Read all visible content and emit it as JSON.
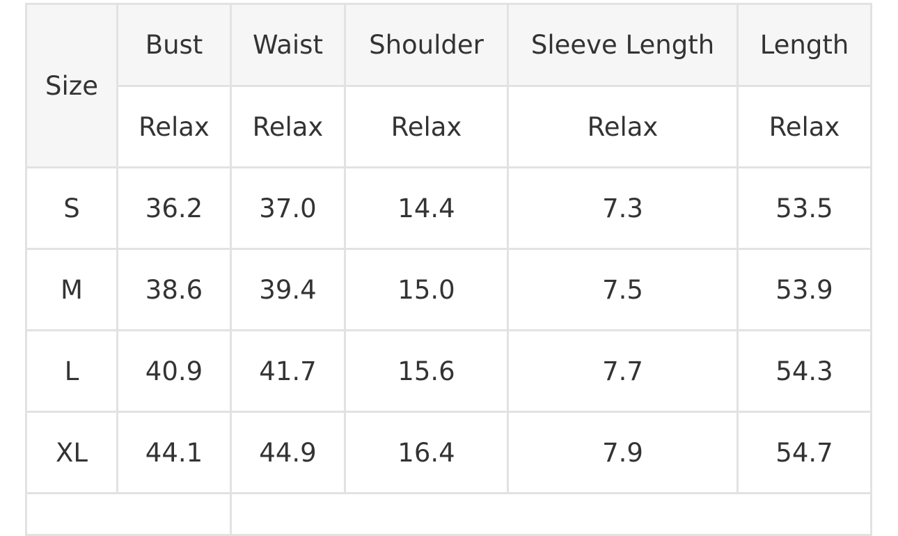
{
  "table": {
    "header": {
      "size": "Size",
      "columns": [
        "Bust",
        "Waist",
        "Shoulder",
        "Sleeve Length",
        "Length"
      ],
      "subheader": [
        "Relax",
        "Relax",
        "Relax",
        "Relax",
        "Relax"
      ]
    },
    "rows": [
      [
        "S",
        "36.2",
        "37.0",
        "14.4",
        "7.3",
        "53.5"
      ],
      [
        "M",
        "38.6",
        "39.4",
        "15.0",
        "7.5",
        "53.9"
      ],
      [
        "L",
        "40.9",
        "41.7",
        "15.6",
        "7.7",
        "54.3"
      ],
      [
        "XL",
        "44.1",
        "44.9",
        "16.4",
        "7.9",
        "54.7"
      ]
    ]
  }
}
